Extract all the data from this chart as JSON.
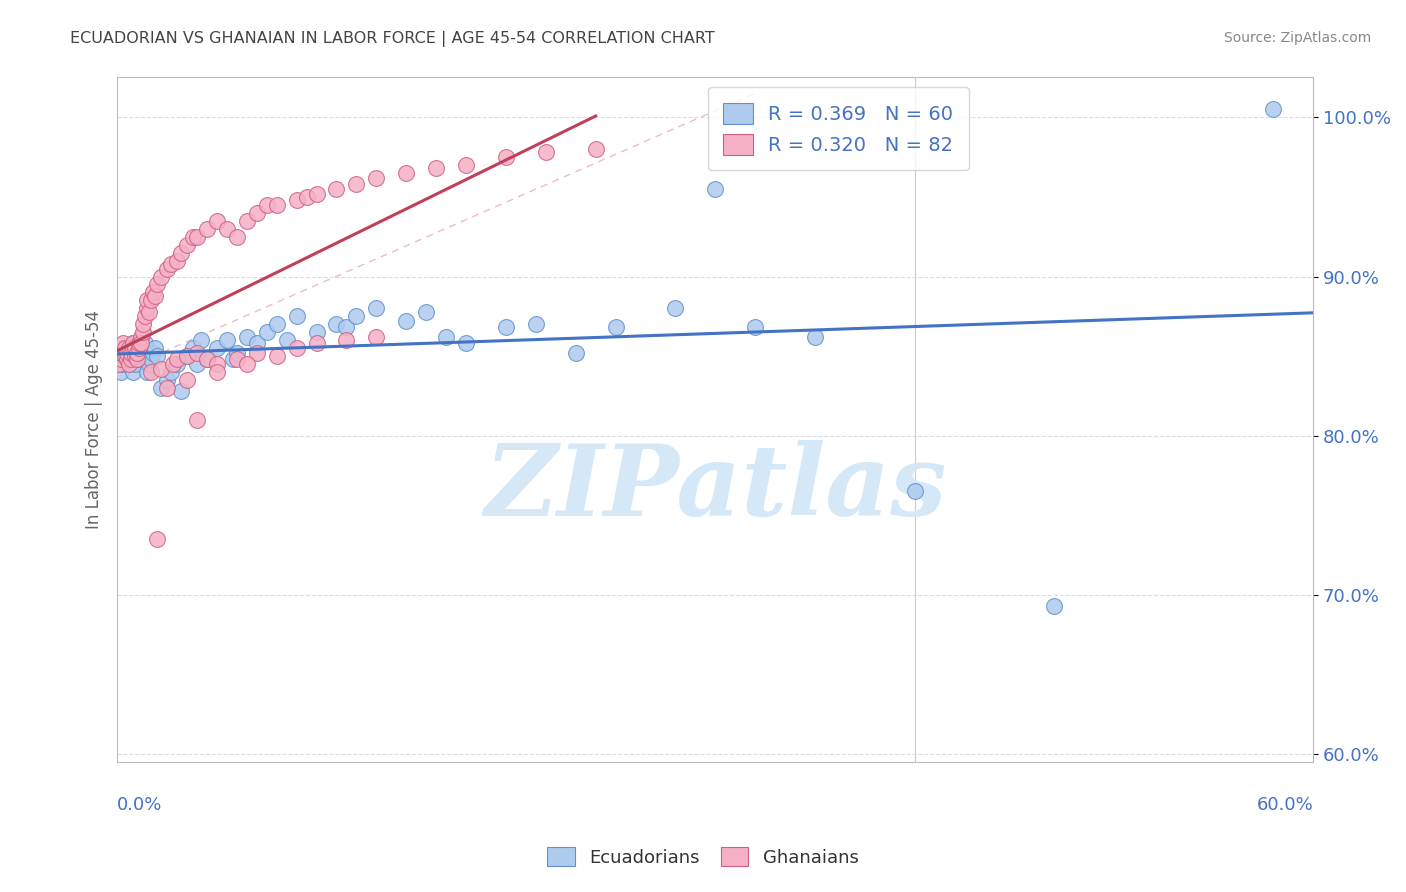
{
  "title": "ECUADORIAN VS GHANAIAN IN LABOR FORCE | AGE 45-54 CORRELATION CHART",
  "source": "Source: ZipAtlas.com",
  "ylabel": "In Labor Force | Age 45-54",
  "y_ticks": [
    0.6,
    0.7,
    0.8,
    0.9,
    1.0
  ],
  "y_tick_labels": [
    "60.0%",
    "70.0%",
    "80.0%",
    "90.0%",
    "100.0%"
  ],
  "x_range": [
    0.0,
    0.6
  ],
  "y_range": [
    0.595,
    1.025
  ],
  "legend_blue_r": "R = 0.369",
  "legend_blue_n": "N = 60",
  "legend_pink_r": "R = 0.320",
  "legend_pink_n": "N = 82",
  "blue_color": "#AECBEE",
  "pink_color": "#F5B0C5",
  "blue_edge_color": "#6090D0",
  "pink_edge_color": "#D06080",
  "blue_line_color": "#4472C4",
  "pink_line_color": "#C0405A",
  "legend_text_color": "#4472C4",
  "title_color": "#444444",
  "source_color": "#888888",
  "watermark_color": "#D5E8F8",
  "watermark_text": "ZIPatlas",
  "background": "#FFFFFF",
  "grid_color": "#DDDDDD",
  "blue_points_x": [
    0.002,
    0.003,
    0.004,
    0.005,
    0.006,
    0.007,
    0.008,
    0.008,
    0.009,
    0.01,
    0.011,
    0.012,
    0.013,
    0.014,
    0.015,
    0.016,
    0.017,
    0.018,
    0.019,
    0.02,
    0.022,
    0.025,
    0.027,
    0.03,
    0.032,
    0.035,
    0.038,
    0.04,
    0.042,
    0.045,
    0.05,
    0.055,
    0.058,
    0.06,
    0.065,
    0.07,
    0.075,
    0.08,
    0.085,
    0.09,
    0.1,
    0.11,
    0.115,
    0.12,
    0.13,
    0.145,
    0.155,
    0.165,
    0.175,
    0.195,
    0.21,
    0.23,
    0.25,
    0.28,
    0.3,
    0.32,
    0.35,
    0.4,
    0.47,
    0.58
  ],
  "blue_points_y": [
    0.84,
    0.845,
    0.848,
    0.852,
    0.855,
    0.85,
    0.858,
    0.84,
    0.845,
    0.848,
    0.852,
    0.855,
    0.85,
    0.858,
    0.84,
    0.845,
    0.848,
    0.852,
    0.855,
    0.85,
    0.83,
    0.835,
    0.84,
    0.845,
    0.828,
    0.85,
    0.855,
    0.845,
    0.86,
    0.848,
    0.855,
    0.86,
    0.848,
    0.852,
    0.862,
    0.858,
    0.865,
    0.87,
    0.86,
    0.875,
    0.865,
    0.87,
    0.868,
    0.875,
    0.88,
    0.872,
    0.878,
    0.862,
    0.858,
    0.868,
    0.87,
    0.852,
    0.868,
    0.88,
    0.955,
    0.868,
    0.862,
    0.765,
    0.693,
    1.005
  ],
  "pink_points_x": [
    0.001,
    0.002,
    0.002,
    0.003,
    0.003,
    0.004,
    0.004,
    0.005,
    0.005,
    0.006,
    0.006,
    0.007,
    0.007,
    0.008,
    0.008,
    0.009,
    0.009,
    0.01,
    0.01,
    0.011,
    0.011,
    0.012,
    0.012,
    0.013,
    0.013,
    0.014,
    0.015,
    0.015,
    0.016,
    0.017,
    0.018,
    0.019,
    0.02,
    0.022,
    0.025,
    0.027,
    0.03,
    0.032,
    0.035,
    0.038,
    0.04,
    0.045,
    0.05,
    0.055,
    0.06,
    0.065,
    0.07,
    0.075,
    0.08,
    0.09,
    0.095,
    0.1,
    0.11,
    0.12,
    0.13,
    0.145,
    0.16,
    0.175,
    0.195,
    0.215,
    0.24,
    0.017,
    0.022,
    0.028,
    0.03,
    0.035,
    0.04,
    0.045,
    0.05,
    0.06,
    0.07,
    0.08,
    0.09,
    0.1,
    0.115,
    0.13,
    0.025,
    0.035,
    0.05,
    0.065,
    0.02,
    0.04
  ],
  "pink_points_y": [
    0.845,
    0.848,
    0.852,
    0.855,
    0.858,
    0.85,
    0.855,
    0.848,
    0.852,
    0.855,
    0.845,
    0.848,
    0.852,
    0.855,
    0.858,
    0.85,
    0.855,
    0.848,
    0.852,
    0.855,
    0.858,
    0.862,
    0.858,
    0.865,
    0.87,
    0.875,
    0.88,
    0.885,
    0.878,
    0.885,
    0.89,
    0.888,
    0.895,
    0.9,
    0.905,
    0.908,
    0.91,
    0.915,
    0.92,
    0.925,
    0.925,
    0.93,
    0.935,
    0.93,
    0.925,
    0.935,
    0.94,
    0.945,
    0.945,
    0.948,
    0.95,
    0.952,
    0.955,
    0.958,
    0.962,
    0.965,
    0.968,
    0.97,
    0.975,
    0.978,
    0.98,
    0.84,
    0.842,
    0.845,
    0.848,
    0.85,
    0.852,
    0.848,
    0.845,
    0.848,
    0.852,
    0.85,
    0.855,
    0.858,
    0.86,
    0.862,
    0.83,
    0.835,
    0.84,
    0.845,
    0.735,
    0.81
  ]
}
